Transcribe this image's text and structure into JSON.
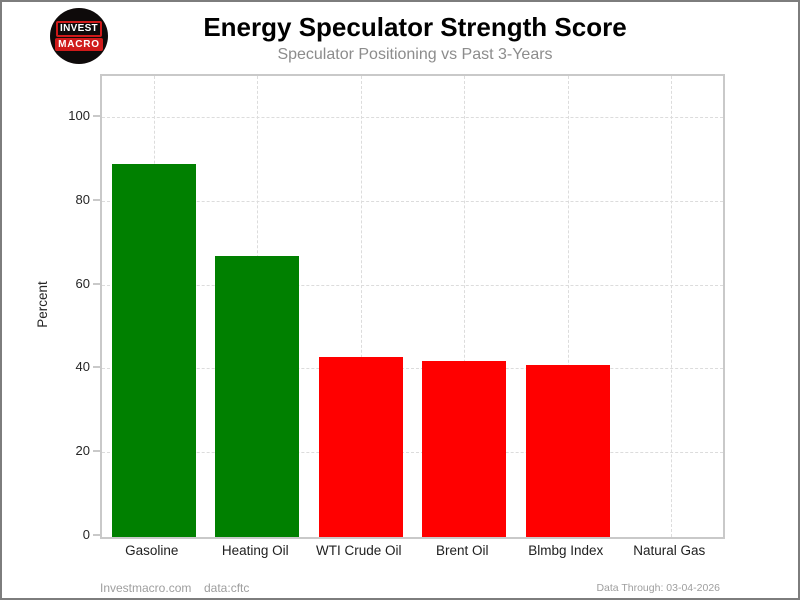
{
  "header": {
    "logo": {
      "line1": "INVEST",
      "line2": "MACRO"
    },
    "title": "Energy Speculator Strength Score",
    "subtitle": "Speculator Positioning vs Past 3-Years"
  },
  "chart_data": {
    "type": "bar",
    "title": "Energy Speculator Strength Score",
    "subtitle": "Speculator Positioning vs Past 3-Years",
    "categories": [
      "Gasoline",
      "Heating Oil",
      "WTI Crude Oil",
      "Brent Oil",
      "Blmbg Index",
      "Natural Gas"
    ],
    "values": [
      89,
      67,
      43,
      42,
      41,
      0
    ],
    "bar_colors": [
      "#008000",
      "#008000",
      "#ff0000",
      "#ff0000",
      "#ff0000",
      "#ff0000"
    ],
    "xlabel": "",
    "ylabel": "Percent",
    "ylim": [
      0,
      110
    ],
    "yticks": [
      0,
      20,
      40,
      60,
      80,
      100
    ],
    "grid": true,
    "grid_style": "dashed",
    "legend_position": "none"
  },
  "footer": {
    "site": "Investmacro.com",
    "source": "data:cftc",
    "data_through": "Data Through: 03-04-2026"
  },
  "colors": {
    "bar_positive": "#008000",
    "bar_negative": "#ff0000",
    "gridline": "#dcdcdc",
    "plot_border": "#c9c9c9",
    "title_text": "#000000",
    "subtitle_text": "#8c8c8c",
    "tick_text": "#262626",
    "footer_text": "#9e9e9e",
    "logo_red": "#d01a1a",
    "logo_black": "#0e0a0a"
  }
}
